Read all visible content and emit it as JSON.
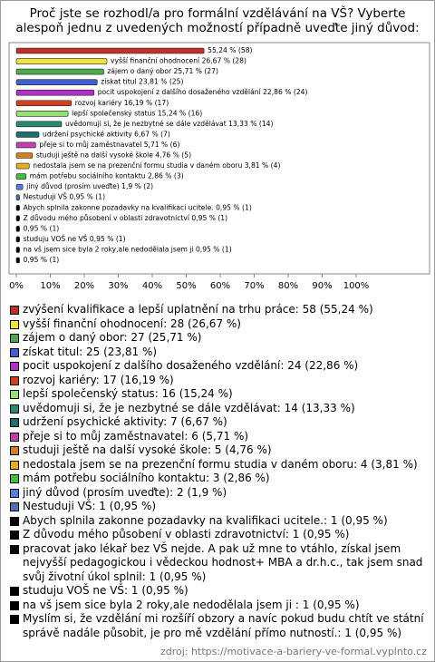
{
  "chart_data": {
    "type": "barh",
    "title": "Proč jste se rozhodl/a pro formální vzdělávání na VŠ? Vyberte alespoň jednu z uvedených možností případně uveďte jiný důvod:",
    "categories": [
      "zvýšení kvalifikace a lepší uplatnění na trhu práce: 58 (55,24 %)",
      "vyšší finanční ohodnocení: 28 (26,67 %)",
      "zájem o daný obor: 27 (25,71 %)",
      "získat titul: 25 (23,81 %)",
      "pocit uspokojení z dalšího dosaženého vzdělání: 24 (22,86 %)",
      "rozvoj kariéry: 17 (16,19 %)",
      "lepší společenský status: 16 (15,24 %)",
      "uvědomuji si, že je nezbytné se dále vzdělávat: 14 (13,33 %)",
      "udržení psychické aktivity: 7 (6,67 %)",
      "přeje si to můj zaměstnavatel: 6 (5,71 %)",
      "studuji ještě na další vysoké škole: 5 (4,76 %)",
      "nedostala jsem se na prezenční formu studia v daném oboru: 4 (3,81 %)",
      "mám potřebu sociálního kontaktu: 3 (2,86 %)",
      "jiný důvod (prosím uveďte): 2 (1,9 %)",
      "Nestuduji VŠ: 1 (0,95 %)",
      "Abych splnila zakonne pozadavky na kvalifikaci ucitele.: 1 (0,95 %)",
      "Z důvodu mého působení v oblasti zdravotnictví: 1 (0,95 %)",
      "pracovat jako lékař bez VŠ nejde. A pak už mne to vtáhlo, získal jsem nejvyšší pedagogickou i vědeckou hodnost+ MBA a dr.h.c., tak jsem snad svůj životní úkol splnil: 1 (0,95 %)",
      "studuju VOŠ ne VŠ: 1 (0,95 %)",
      "na vš jsem sice byla 2 roky,ale nedodělala jsem ji : 1 (0,95 %)",
      "Myslím si, že vzdělání mi rozšíří obzory a navíc pokud budu chtít ve státní správě nadále působit, je pro mě vzdělání přímo nutností.: 1 (0,95 %)"
    ],
    "values": [
      55.24,
      26.67,
      25.71,
      23.81,
      22.86,
      16.19,
      15.24,
      13.33,
      6.67,
      5.71,
      4.76,
      3.81,
      2.86,
      1.9,
      0.95,
      0.95,
      0.95,
      0.95,
      0.95,
      0.95,
      0.95
    ],
    "value_labels": [
      "55,24 % (58)",
      "vyšší finanční ohodnocení 26,67 % (28)",
      "zájem o daný obor 25,71 % (27)",
      "získat titul 23,81 % (25)",
      "pocit uspokojení z dalšího dosaženého vzdělání 22,86 % (24)",
      "rozvoj kariéry 16,19 % (17)",
      "lepší společenský status 15,24 % (16)",
      "uvědomuji si, že je nezbytné se dále vzdělávat 13,33 % (14)",
      "udržení psychické aktivity 6,67 % (7)",
      "přeje si to můj zaměstnavatel 5,71 % (6)",
      "studuji ještě na další vysoké škole 4,76 % (5)",
      "nedostala jsem se na prezenční formu studia v daném oboru 3,81 % (4)",
      "mám potřebu sociálního kontaktu 2,86 % (3)",
      "jiný důvod (prosím uveďte) 1,9 % (2)",
      "Nestuduji VŠ 0,95 % (1)",
      "Abych splnila zakonne pozadavky na kvalifikaci ucitele. 0,95 % (1)",
      "Z důvodu mého působení v oblasti zdravotnictví 0,95 % (1)",
      "0,95 % (1)",
      "studuju VOŠ ne VŠ 0,95 % (1)",
      "na vš jsem sice byla 2 roky,ale nedodělala jsem ji  0,95 % (1)",
      "0,95 % (1)"
    ],
    "colors": [
      "#c0302a",
      "#f2e23c",
      "#4caa4a",
      "#3f5fd0",
      "#b030c8",
      "#d0401e",
      "#94e070",
      "#2a8a70",
      "#1f6e70",
      "#c040b0",
      "#d08020",
      "#e0b020",
      "#40c040",
      "#5080e0",
      "#5070b0",
      "#000000",
      "#000000",
      "#000000",
      "#000000",
      "#000000",
      "#000000"
    ],
    "xlim": [
      0,
      100
    ],
    "xticks": [
      {
        "value": 0,
        "label": "0%"
      },
      {
        "value": 10,
        "label": "10%"
      },
      {
        "value": 20,
        "label": "20%"
      },
      {
        "value": 30,
        "label": "30%"
      },
      {
        "value": 40,
        "label": "40%"
      },
      {
        "value": 50,
        "label": "50%"
      },
      {
        "value": 60,
        "label": "60%"
      },
      {
        "value": 70,
        "label": "70%"
      },
      {
        "value": 80,
        "label": "80%"
      },
      {
        "value": 90,
        "label": "90%"
      },
      {
        "value": 100,
        "label": "100%"
      }
    ],
    "source": "zdroj: https://motivace-a-bariery-ve-formal.vyplnto.cz"
  }
}
